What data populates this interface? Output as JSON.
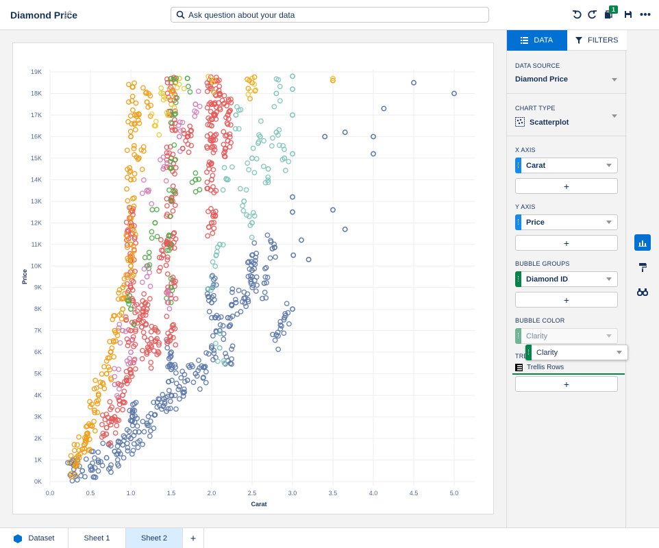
{
  "header": {
    "title": "Diamond Price",
    "search_placeholder": "Ask question about your data",
    "badge_count": "1"
  },
  "panel": {
    "tabs": [
      "DATA",
      "FILTERS"
    ],
    "data_source_label": "DATA SOURCE",
    "data_source_value": "Diamond Price",
    "chart_type_label": "CHART TYPE",
    "chart_type_value": "Scatterplot",
    "x_axis_label": "X AXIS",
    "x_axis_field": "Carat",
    "y_axis_label": "Y AXIS",
    "y_axis_field": "Price",
    "bubble_groups_label": "BUBBLE GROUPS",
    "bubble_groups_field": "Diamond ID",
    "bubble_color_label": "BUBBLE COLOR",
    "bubble_color_field": "Clarity",
    "drag_field": "Clarity",
    "trellis_label": "TRE",
    "trellis_rows": "Trellis Rows",
    "add_symbol": "+"
  },
  "bottom_tabs": {
    "dataset": "Dataset",
    "sheet1": "Sheet 1",
    "sheet2": "Sheet 2",
    "add": "+"
  },
  "colors": {
    "accent": "#0070d2",
    "x_chip": "#1589ee",
    "group_chip": "#04844b",
    "series": [
      "#5b77a8",
      "#e55858",
      "#f29c12",
      "#4daa47",
      "#7ec5b8",
      "#d281b6",
      "#e7cc3c"
    ]
  },
  "chart_data": {
    "type": "scatter",
    "xlabel": "Carat",
    "ylabel": "Price",
    "xlim": [
      0,
      5.0
    ],
    "ylim": [
      0,
      19000
    ],
    "x_ticks": [
      "0.0",
      "0.5",
      "1.0",
      "1.5",
      "2.0",
      "2.5",
      "3.0",
      "3.5",
      "4.0",
      "4.5",
      "5.0"
    ],
    "y_ticks": [
      "0K",
      "1K",
      "2K",
      "3K",
      "4K",
      "5K",
      "6K",
      "7K",
      "8K",
      "9K",
      "10K",
      "11K",
      "12K",
      "13K",
      "14K",
      "15K",
      "16K",
      "17K",
      "18K",
      "19K"
    ],
    "grid": true,
    "series": [
      {
        "color_index": 0,
        "points": [
          [
            5.0,
            18000
          ],
          [
            4.5,
            18500
          ],
          [
            4.13,
            17300
          ],
          [
            4.0,
            16000
          ],
          [
            4.0,
            15200
          ],
          [
            3.65,
            16200
          ],
          [
            3.4,
            16000
          ],
          [
            3.5,
            12600
          ],
          [
            3.11,
            11200
          ],
          [
            3.01,
            10500
          ],
          [
            3.0,
            12500
          ],
          [
            3.0,
            13200
          ],
          [
            3.0,
            8000
          ],
          [
            3.65,
            11700
          ],
          [
            2.75,
            10800
          ],
          [
            2.8,
            6800
          ],
          [
            2.5,
            10500
          ],
          [
            2.5,
            9500
          ],
          [
            2.4,
            8500
          ],
          [
            2.3,
            8300
          ],
          [
            2.2,
            7600
          ],
          [
            2.1,
            7000
          ],
          [
            2.0,
            8300
          ],
          [
            2.2,
            5600
          ],
          [
            2.0,
            6200
          ],
          [
            1.9,
            5300
          ],
          [
            1.8,
            5000
          ],
          [
            1.7,
            4700
          ],
          [
            1.6,
            4400
          ],
          [
            1.5,
            4000
          ],
          [
            1.4,
            3500
          ],
          [
            1.3,
            3100
          ],
          [
            1.2,
            2700
          ],
          [
            1.1,
            2300
          ],
          [
            1.0,
            2000
          ],
          [
            0.9,
            1700
          ],
          [
            0.8,
            1400
          ],
          [
            0.7,
            1100
          ],
          [
            0.6,
            900
          ],
          [
            0.5,
            700
          ],
          [
            0.4,
            500
          ],
          [
            0.3,
            350
          ],
          [
            0.25,
            300
          ],
          [
            1.01,
            2800
          ],
          [
            1.02,
            3200
          ],
          [
            1.5,
            5200
          ],
          [
            1.5,
            6000
          ],
          [
            2.01,
            9000
          ],
          [
            2.5,
            9800
          ],
          [
            2.65,
            9200
          ],
          [
            3.2,
            10300
          ],
          [
            2.9,
            7600
          ]
        ]
      },
      {
        "color_index": 1,
        "points": [
          [
            1.0,
            5000
          ],
          [
            1.0,
            7000
          ],
          [
            1.0,
            9000
          ],
          [
            1.0,
            11000
          ],
          [
            1.0,
            12000
          ],
          [
            1.2,
            6000
          ],
          [
            1.2,
            8000
          ],
          [
            1.5,
            7000
          ],
          [
            1.5,
            9000
          ],
          [
            1.5,
            11000
          ],
          [
            1.5,
            13000
          ],
          [
            1.5,
            15000
          ],
          [
            1.5,
            17000
          ],
          [
            1.5,
            18500
          ],
          [
            2.0,
            12000
          ],
          [
            2.0,
            14000
          ],
          [
            2.0,
            15500
          ],
          [
            2.0,
            16500
          ],
          [
            2.0,
            17500
          ],
          [
            2.0,
            18500
          ],
          [
            2.1,
            18000
          ],
          [
            2.2,
            17000
          ],
          [
            1.7,
            16000
          ],
          [
            1.3,
            6500
          ],
          [
            0.9,
            4000
          ],
          [
            0.8,
            3000
          ],
          [
            0.7,
            2500
          ],
          [
            1.1,
            7500
          ],
          [
            1.4,
            10500
          ],
          [
            2.2,
            15800
          ]
        ]
      },
      {
        "color_index": 2,
        "points": [
          [
            0.3,
            800
          ],
          [
            0.35,
            1200
          ],
          [
            0.4,
            1500
          ],
          [
            0.45,
            2000
          ],
          [
            0.5,
            2600
          ],
          [
            0.55,
            3300
          ],
          [
            0.6,
            4000
          ],
          [
            0.7,
            5000
          ],
          [
            0.75,
            6000
          ],
          [
            0.8,
            7000
          ],
          [
            0.9,
            8000
          ],
          [
            1.0,
            10000
          ],
          [
            1.0,
            12500
          ],
          [
            1.0,
            14000
          ],
          [
            1.0,
            16000
          ],
          [
            1.05,
            17000
          ],
          [
            1.02,
            18300
          ],
          [
            1.1,
            15000
          ],
          [
            1.0,
            11000
          ],
          [
            0.9,
            9000
          ],
          [
            1.5,
            18700
          ],
          [
            1.2,
            17600
          ],
          [
            2.5,
            18500
          ],
          [
            3.5,
            18600
          ]
        ]
      },
      {
        "color_index": 3,
        "points": [
          [
            1.5,
            9000
          ],
          [
            1.5,
            11000
          ],
          [
            1.5,
            13000
          ],
          [
            1.5,
            15000
          ],
          [
            1.5,
            17000
          ],
          [
            1.55,
            18500
          ],
          [
            1.7,
            18700
          ],
          [
            1.2,
            10000
          ],
          [
            1.3,
            12000
          ],
          [
            1.0,
            8000
          ],
          [
            1.8,
            14000
          ]
        ]
      },
      {
        "color_index": 4,
        "points": [
          [
            2.2,
            14000
          ],
          [
            2.4,
            13000
          ],
          [
            2.5,
            12000
          ],
          [
            2.6,
            16000
          ],
          [
            2.8,
            18000
          ],
          [
            3.0,
            18800
          ],
          [
            3.0,
            18200
          ],
          [
            2.3,
            17000
          ],
          [
            2.1,
            11000
          ],
          [
            2.5,
            15000
          ],
          [
            2.7,
            14500
          ],
          [
            2.9,
            15000
          ],
          [
            3.0,
            17000
          ],
          [
            3.0,
            15200
          ],
          [
            2.0,
            9500
          ],
          [
            2.1,
            6200
          ],
          [
            2.8,
            16200
          ]
        ]
      },
      {
        "color_index": 5,
        "points": [
          [
            1.0,
            6000
          ],
          [
            1.2,
            9500
          ],
          [
            1.2,
            13500
          ],
          [
            1.4,
            14500
          ],
          [
            1.6,
            16000
          ],
          [
            1.8,
            17500
          ],
          [
            1.5,
            8500
          ],
          [
            0.8,
            4500
          ],
          [
            0.9,
            7000
          ]
        ]
      },
      {
        "color_index": 6,
        "points": [
          [
            1.5,
            17500
          ],
          [
            1.6,
            18700
          ],
          [
            2.0,
            18600
          ],
          [
            2.5,
            18700
          ],
          [
            3.5,
            18700
          ],
          [
            1.4,
            18000
          ],
          [
            1.3,
            16500
          ]
        ]
      }
    ]
  }
}
